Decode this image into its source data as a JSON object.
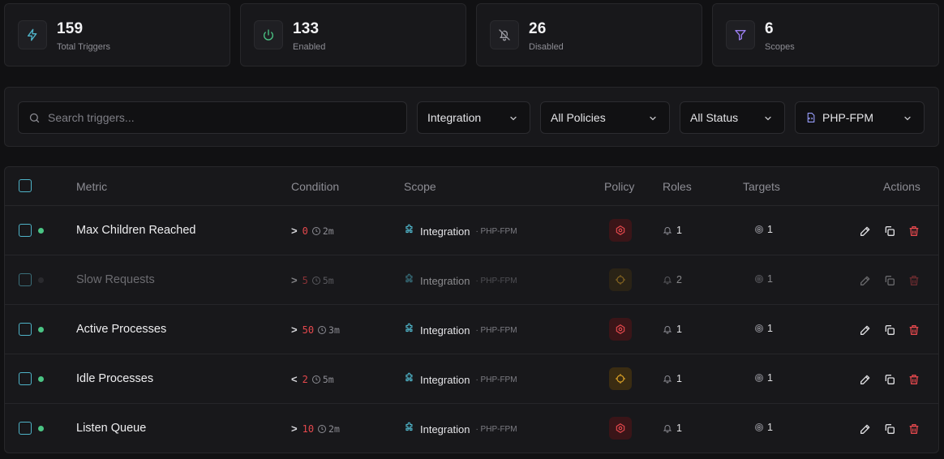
{
  "stats": [
    {
      "value": "159",
      "label": "Total Triggers",
      "icon": "lightning-icon",
      "color": "#4fb3c8"
    },
    {
      "value": "133",
      "label": "Enabled",
      "icon": "power-icon",
      "color": "#4ac484"
    },
    {
      "value": "26",
      "label": "Disabled",
      "icon": "bell-off-icon",
      "color": "#9a9aa2"
    },
    {
      "value": "6",
      "label": "Scopes",
      "icon": "filter-icon",
      "color": "#9b7ff0"
    }
  ],
  "filters": {
    "search_placeholder": "Search triggers...",
    "scope_select": "Integration",
    "policy_select": "All Policies",
    "status_select": "All Status",
    "integration_select": "PHP-FPM"
  },
  "table": {
    "headers": {
      "metric": "Metric",
      "condition": "Condition",
      "scope": "Scope",
      "policy": "Policy",
      "roles": "Roles",
      "targets": "Targets",
      "actions": "Actions"
    },
    "rows": [
      {
        "metric": "Max Children Reached",
        "op": ">",
        "value": "0",
        "duration": "2m",
        "scope": "Integration",
        "scope_sub": "PHP-FPM",
        "policy": "critical",
        "roles": "1",
        "targets": "1",
        "enabled": true
      },
      {
        "metric": "Slow Requests",
        "op": ">",
        "value": "5",
        "duration": "5m",
        "scope": "Integration",
        "scope_sub": "PHP-FPM",
        "policy": "warning",
        "roles": "2",
        "targets": "1",
        "enabled": false
      },
      {
        "metric": "Active Processes",
        "op": ">",
        "value": "50",
        "duration": "3m",
        "scope": "Integration",
        "scope_sub": "PHP-FPM",
        "policy": "critical",
        "roles": "1",
        "targets": "1",
        "enabled": true
      },
      {
        "metric": "Idle Processes",
        "op": "<",
        "value": "2",
        "duration": "5m",
        "scope": "Integration",
        "scope_sub": "PHP-FPM",
        "policy": "warning",
        "roles": "1",
        "targets": "1",
        "enabled": true
      },
      {
        "metric": "Listen Queue",
        "op": ">",
        "value": "10",
        "duration": "2m",
        "scope": "Integration",
        "scope_sub": "PHP-FPM",
        "policy": "critical",
        "roles": "1",
        "targets": "1",
        "enabled": true
      }
    ]
  },
  "colors": {
    "accent": "#4fb3c8",
    "enabled": "#4ac484",
    "critical": "#e5484d",
    "warning": "#e0a526",
    "danger": "#e5484d"
  }
}
